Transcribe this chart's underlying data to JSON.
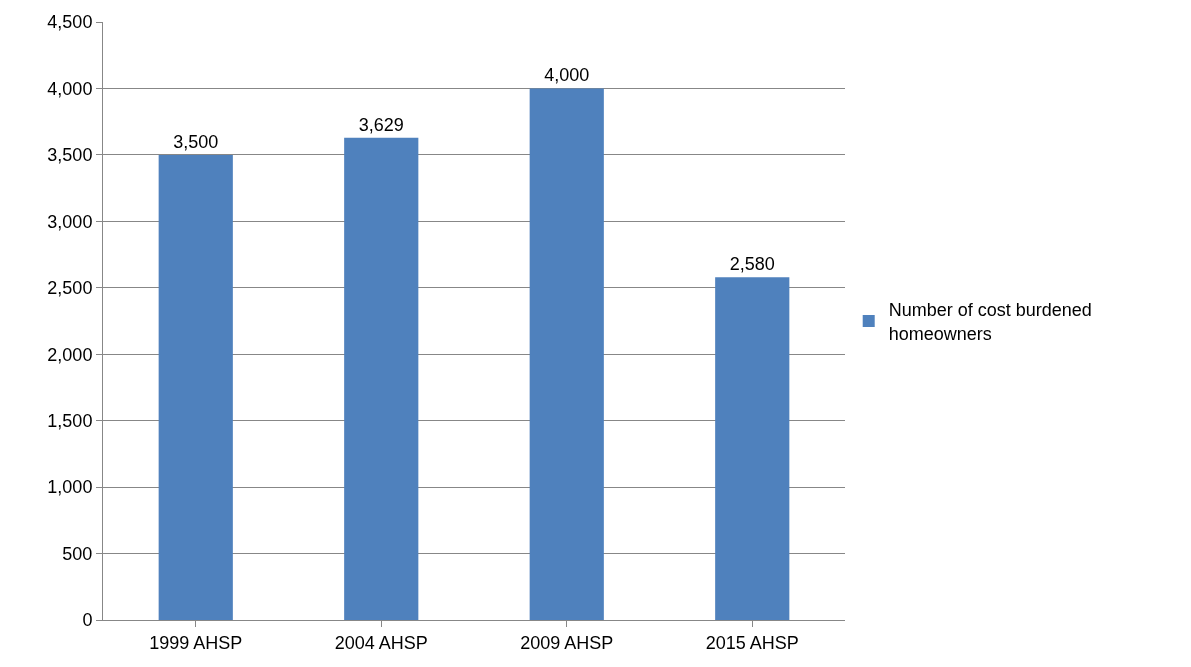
{
  "chart_data": {
    "type": "bar",
    "categories": [
      "1999 AHSP",
      "2004 AHSP",
      "2009 AHSP",
      "2015 AHSP"
    ],
    "series": [
      {
        "name": "Number of cost burdened homeowners",
        "color": "#4f81bd",
        "values": [
          3500,
          3629,
          4000,
          2580
        ]
      }
    ],
    "ylim": [
      0,
      4500
    ],
    "yticks": [
      {
        "value": 0,
        "label": "0"
      },
      {
        "value": 500,
        "label": "500"
      },
      {
        "value": 1000,
        "label": "1,000"
      },
      {
        "value": 1500,
        "label": "1,500"
      },
      {
        "value": 2000,
        "label": "2,000"
      },
      {
        "value": 2500,
        "label": "2,500"
      },
      {
        "value": 3000,
        "label": "3,000"
      },
      {
        "value": 3500,
        "label": "3,500"
      },
      {
        "value": 4000,
        "label": "4,000"
      },
      {
        "value": 4500,
        "label": "4,500"
      }
    ],
    "value_labels": [
      "3,500",
      "3,629",
      "4,000",
      "2,580"
    ],
    "grid": "y",
    "legend": "right"
  }
}
